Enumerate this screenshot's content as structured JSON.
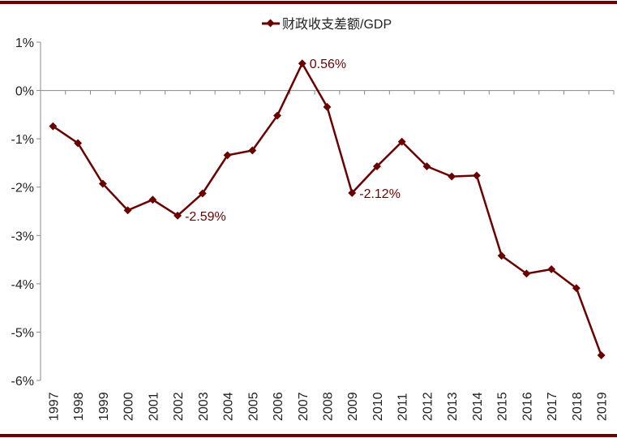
{
  "chart_data": {
    "type": "line",
    "title": "",
    "xlabel": "",
    "ylabel": "",
    "legend": {
      "entries": [
        "财政收支差额/GDP"
      ],
      "placement": "top-center"
    },
    "x": [
      "1997",
      "1998",
      "1999",
      "2000",
      "2001",
      "2002",
      "2003",
      "2004",
      "2005",
      "2006",
      "2007",
      "2008",
      "2009",
      "2010",
      "2011",
      "2012",
      "2013",
      "2014",
      "2015",
      "2016",
      "2017",
      "2018",
      "2019"
    ],
    "series": [
      {
        "name": "财政收支差额/GDP",
        "color": "#6b0000",
        "values": [
          -0.74,
          -1.09,
          -1.93,
          -2.48,
          -2.26,
          -2.59,
          -2.13,
          -1.34,
          -1.24,
          -0.52,
          0.56,
          -0.34,
          -2.12,
          -1.57,
          -1.06,
          -1.57,
          -1.78,
          -1.76,
          -3.42,
          -3.79,
          -3.7,
          -4.09,
          -5.48
        ]
      }
    ],
    "ylim": [
      -6,
      1
    ],
    "yticks": [
      1,
      0,
      -1,
      -2,
      -3,
      -4,
      -5,
      -6
    ],
    "ytick_labels": [
      "1%",
      "0%",
      "-1%",
      "-2%",
      "-3%",
      "-4%",
      "-5%",
      "-6%"
    ],
    "annotations": [
      {
        "x": "2002",
        "text": "-2.59%"
      },
      {
        "x": "2007",
        "text": "0.56%"
      },
      {
        "x": "2009",
        "text": "-2.12%"
      }
    ],
    "grid": false
  }
}
